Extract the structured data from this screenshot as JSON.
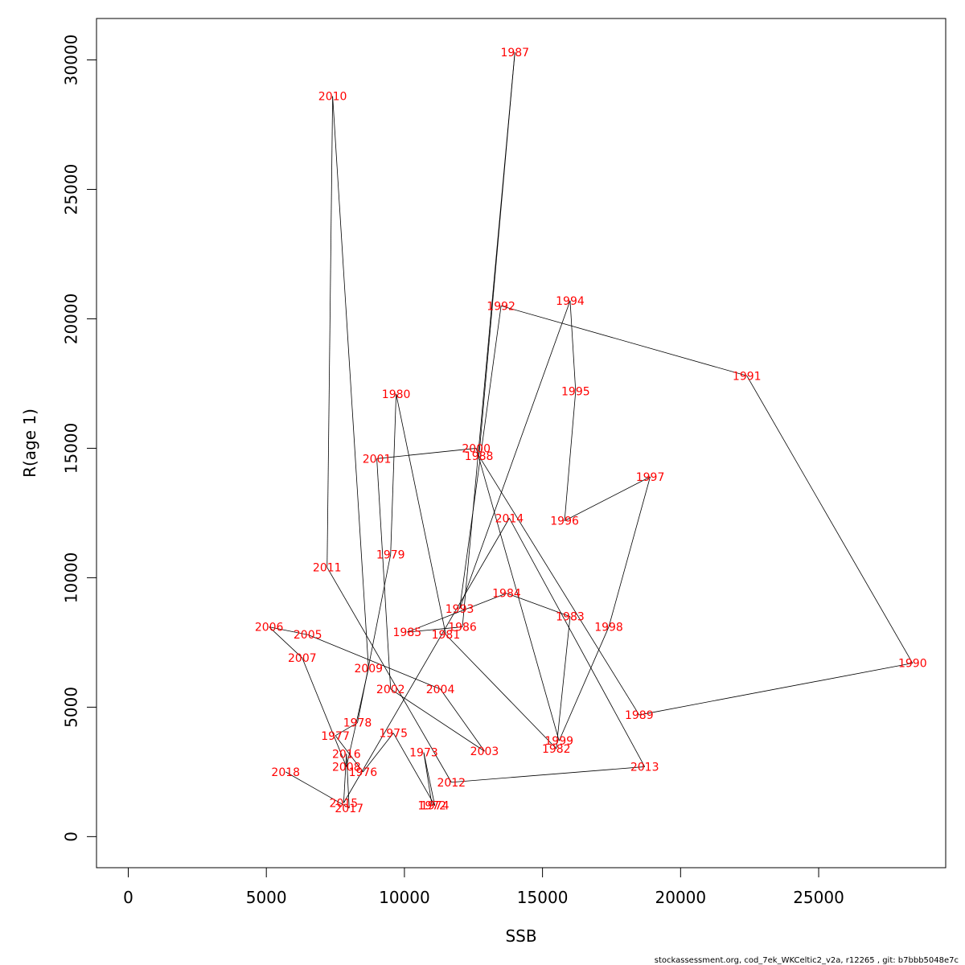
{
  "chart_data": {
    "type": "line",
    "title": "",
    "xlabel": "SSB",
    "ylabel": "R(age 1)",
    "xlim": [
      -1150,
      29600
    ],
    "ylim": [
      -1200,
      31600
    ],
    "xticks": [
      0,
      5000,
      10000,
      15000,
      20000,
      25000
    ],
    "yticks": [
      0,
      5000,
      10000,
      15000,
      20000,
      25000,
      30000
    ],
    "grid": false,
    "point_color": "#ff0000",
    "line_color": "#000000",
    "points": [
      {
        "year": "1972",
        "x": 11000,
        "y": 1200
      },
      {
        "year": "1973",
        "x": 10700,
        "y": 3250
      },
      {
        "year": "1974",
        "x": 11100,
        "y": 1200
      },
      {
        "year": "1975",
        "x": 9600,
        "y": 4000
      },
      {
        "year": "1976",
        "x": 8500,
        "y": 2500
      },
      {
        "year": "1977",
        "x": 7500,
        "y": 3900
      },
      {
        "year": "1978",
        "x": 8300,
        "y": 4400
      },
      {
        "year": "1979",
        "x": 9500,
        "y": 10900
      },
      {
        "year": "1980",
        "x": 9700,
        "y": 17100
      },
      {
        "year": "1981",
        "x": 11500,
        "y": 7800
      },
      {
        "year": "1982",
        "x": 15500,
        "y": 3400
      },
      {
        "year": "1983",
        "x": 16000,
        "y": 8500
      },
      {
        "year": "1984",
        "x": 13700,
        "y": 9400
      },
      {
        "year": "1985",
        "x": 10100,
        "y": 7900
      },
      {
        "year": "1986",
        "x": 12100,
        "y": 8100
      },
      {
        "year": "1987",
        "x": 14000,
        "y": 30300
      },
      {
        "year": "1988",
        "x": 12700,
        "y": 14700
      },
      {
        "year": "1989",
        "x": 18500,
        "y": 4700
      },
      {
        "year": "1990",
        "x": 28400,
        "y": 6700
      },
      {
        "year": "1991",
        "x": 22400,
        "y": 17800
      },
      {
        "year": "1992",
        "x": 13500,
        "y": 20500
      },
      {
        "year": "1993",
        "x": 12000,
        "y": 8800
      },
      {
        "year": "1994",
        "x": 16000,
        "y": 20700
      },
      {
        "year": "1995",
        "x": 16200,
        "y": 17200
      },
      {
        "year": "1996",
        "x": 15800,
        "y": 12200
      },
      {
        "year": "1997",
        "x": 18900,
        "y": 13900
      },
      {
        "year": "1998",
        "x": 17400,
        "y": 8100
      },
      {
        "year": "1999",
        "x": 15600,
        "y": 3700
      },
      {
        "year": "2000",
        "x": 12600,
        "y": 15000
      },
      {
        "year": "2001",
        "x": 9000,
        "y": 14600
      },
      {
        "year": "2002",
        "x": 9500,
        "y": 5700
      },
      {
        "year": "2003",
        "x": 12900,
        "y": 3300
      },
      {
        "year": "2004",
        "x": 11300,
        "y": 5700
      },
      {
        "year": "2005",
        "x": 6500,
        "y": 7800
      },
      {
        "year": "2006",
        "x": 5100,
        "y": 8100
      },
      {
        "year": "2007",
        "x": 6300,
        "y": 6900
      },
      {
        "year": "2008",
        "x": 7900,
        "y": 2700
      },
      {
        "year": "2009",
        "x": 8700,
        "y": 6500
      },
      {
        "year": "2010",
        "x": 7400,
        "y": 28600
      },
      {
        "year": "2011",
        "x": 7200,
        "y": 10400
      },
      {
        "year": "2012",
        "x": 11700,
        "y": 2100
      },
      {
        "year": "2013",
        "x": 18700,
        "y": 2700
      },
      {
        "year": "2014",
        "x": 13800,
        "y": 12300
      },
      {
        "year": "2015",
        "x": 7800,
        "y": 1300
      },
      {
        "year": "2016",
        "x": 7900,
        "y": 3200
      },
      {
        "year": "2017",
        "x": 8000,
        "y": 1100
      },
      {
        "year": "2018",
        "x": 5700,
        "y": 2500
      }
    ]
  },
  "footer": "stockassessment.org, cod_7ek_WKCeltic2_v2a, r12265 , git: b7bbb5048e7c"
}
